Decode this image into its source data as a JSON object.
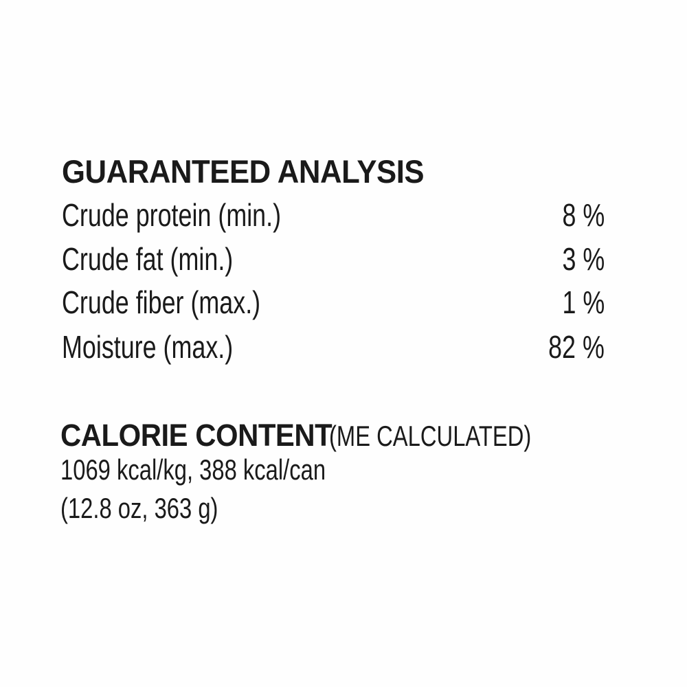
{
  "guaranteed_analysis": {
    "title": "GUARANTEED ANALYSIS",
    "rows": [
      {
        "label": "Crude protein (min.)",
        "value": "8 %"
      },
      {
        "label": "Crude fat (min.)",
        "value": "3 %"
      },
      {
        "label": "Crude fiber (max.)",
        "value": "1 %"
      },
      {
        "label": "Moisture (max.)",
        "value": "82 %"
      }
    ]
  },
  "calorie_content": {
    "title": "CALORIE CONTENT",
    "subtitle": "(ME CALCULATED)",
    "line1": "1069 kcal/kg, 388 kcal/can",
    "line2": "(12.8 oz, 363 g)"
  }
}
